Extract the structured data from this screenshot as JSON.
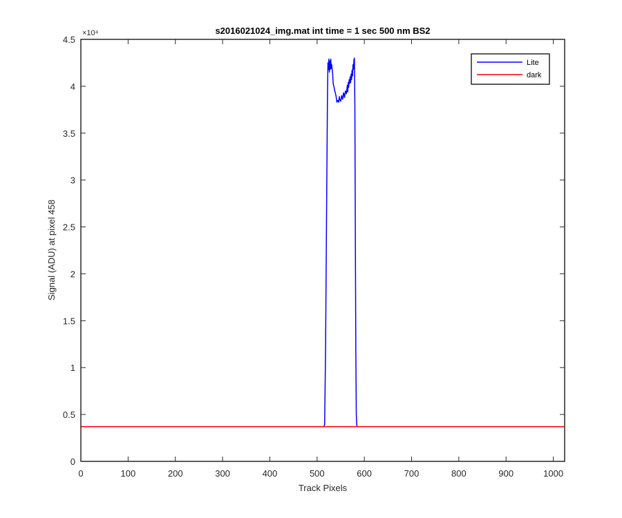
{
  "chart_data": {
    "type": "line",
    "title": "s2016021024_img.mat int time = 1 sec  500 nm BS2",
    "xlabel": "Track Pixels",
    "ylabel": "Signal (ADU) at pixel 458",
    "xlim": [
      0,
      1024
    ],
    "ylim": [
      0,
      45000
    ],
    "y_exponent_label": "×10⁴",
    "xticks": [
      0,
      100,
      200,
      300,
      400,
      500,
      600,
      700,
      800,
      900,
      1000
    ],
    "xtick_labels": [
      "0",
      "100",
      "200",
      "300",
      "400",
      "500",
      "600",
      "700",
      "800",
      "900",
      "1000"
    ],
    "yticks": [
      0,
      5000,
      10000,
      15000,
      20000,
      25000,
      30000,
      35000,
      40000,
      45000
    ],
    "ytick_labels": [
      "0",
      "0.5",
      "1",
      "1.5",
      "2",
      "2.5",
      "3",
      "3.5",
      "4",
      "4.5"
    ],
    "grid": false,
    "legend_position": "top-right",
    "series": [
      {
        "name": "Lite",
        "color": "#0000ff",
        "x": [
          0,
          514,
          516,
          518,
          520,
          522,
          523,
          524,
          525,
          526,
          527,
          528,
          529,
          530,
          531,
          532,
          533,
          534,
          535,
          536,
          537,
          538,
          540,
          542,
          544,
          546,
          547,
          548,
          550,
          552,
          554,
          556,
          558,
          560,
          562,
          564,
          565,
          566,
          567,
          568,
          569,
          570,
          571,
          572,
          573,
          574,
          575,
          576,
          577,
          578,
          579,
          580,
          581,
          582,
          583,
          584,
          585,
          586,
          1024
        ],
        "y": [
          3700,
          3700,
          3900,
          12000,
          26000,
          39000,
          42500,
          41800,
          42900,
          41500,
          42700,
          41800,
          42900,
          41900,
          42300,
          41800,
          41300,
          40300,
          40100,
          39900,
          39600,
          39400,
          39000,
          38300,
          38500,
          38300,
          38900,
          38600,
          38400,
          39000,
          38600,
          39300,
          38800,
          39500,
          39200,
          40100,
          39400,
          40400,
          39900,
          40700,
          40300,
          41000,
          40400,
          41300,
          40700,
          41700,
          41100,
          42300,
          41800,
          42800,
          43000,
          38000,
          24000,
          12000,
          5000,
          3900,
          3700,
          3700,
          3700
        ]
      },
      {
        "name": "dark",
        "color": "#ff0000",
        "x": [
          0,
          1024
        ],
        "y": [
          3700,
          3700
        ]
      }
    ]
  }
}
